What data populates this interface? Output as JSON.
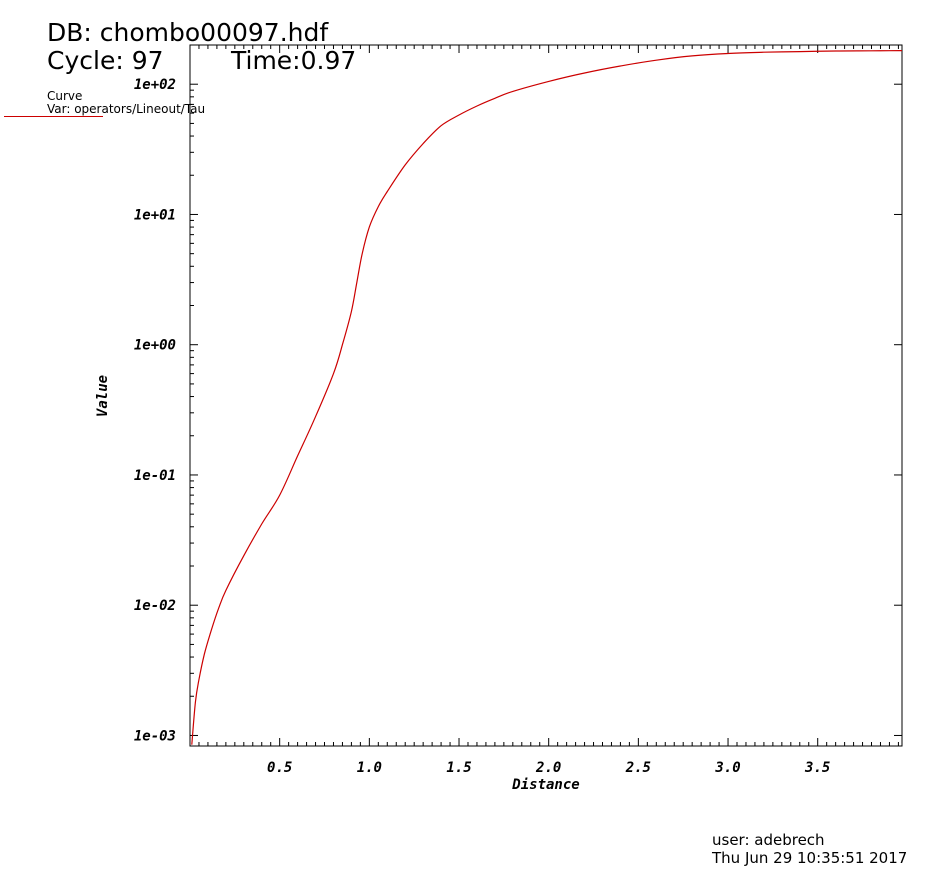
{
  "header": {
    "db_line": "DB: chombo00097.hdf",
    "cycle_line": "Cycle: 97",
    "time_line": "Time:0.97"
  },
  "legend": {
    "title": "Curve",
    "var": "Var: operators/Lineout/Tau",
    "line_color": "#cc0000"
  },
  "footer": {
    "user": "user: adebrech",
    "date": "Thu Jun 29 10:35:51 2017"
  },
  "chart_data": {
    "type": "line",
    "title": "",
    "xlabel": "Distance",
    "ylabel": "Value",
    "xlim": [
      0.0,
      3.97
    ],
    "ylim": [
      0.00083,
      200
    ],
    "yscale": "log",
    "grid": false,
    "legend_position": "top-left",
    "x_ticks": [
      0.5,
      1.0,
      1.5,
      2.0,
      2.5,
      3.0,
      3.5
    ],
    "x_tick_labels": [
      "0.5",
      "1.0",
      "1.5",
      "2.0",
      "2.5",
      "3.0",
      "3.5"
    ],
    "y_ticks": [
      0.001,
      0.01,
      0.1,
      1,
      10,
      100
    ],
    "y_tick_labels": [
      "1e-03",
      "1e-02",
      "1e-01",
      "1e+00",
      "1e+01",
      "1e+02"
    ],
    "series": [
      {
        "color": "#cc0000",
        "x": [
          0.01,
          0.03,
          0.05,
          0.08,
          0.12,
          0.16,
          0.2,
          0.3,
          0.4,
          0.5,
          0.6,
          0.7,
          0.8,
          0.85,
          0.9,
          0.93,
          0.96,
          1.0,
          1.05,
          1.1,
          1.2,
          1.3,
          1.4,
          1.5,
          1.6,
          1.7,
          1.8,
          2.0,
          2.2,
          2.4,
          2.6,
          2.8,
          3.0,
          3.2,
          3.4,
          3.6,
          3.8,
          3.97
        ],
        "y": [
          0.00085,
          0.0018,
          0.0027,
          0.0042,
          0.0065,
          0.0095,
          0.013,
          0.024,
          0.042,
          0.07,
          0.14,
          0.28,
          0.6,
          1.0,
          1.8,
          3.0,
          5.0,
          8.0,
          11.5,
          15.0,
          24.0,
          35.0,
          48.0,
          58.0,
          68.0,
          78.0,
          88.0,
          105.0,
          122.0,
          138.0,
          153.0,
          165.0,
          172.0,
          176.0,
          178.0,
          180.0,
          180.5,
          181.0
        ]
      }
    ]
  }
}
